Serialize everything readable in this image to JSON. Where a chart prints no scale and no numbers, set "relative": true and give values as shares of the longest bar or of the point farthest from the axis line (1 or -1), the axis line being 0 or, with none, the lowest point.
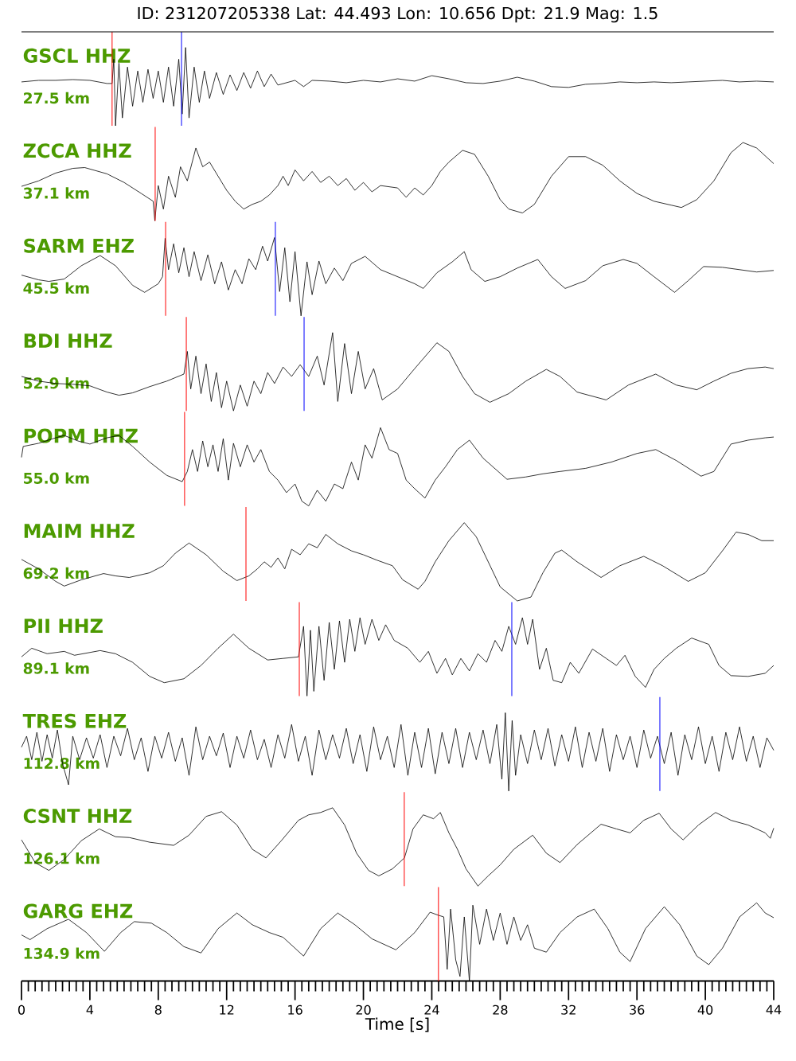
{
  "chart_data": [
    {
      "type": "line",
      "title": "ID: 231207205338 Lat: 44.493 Lon: 10.656 Dpt: 21.9 Mag: 1.5",
      "annotations": [
        "GSCL HHZ",
        "27.5 km"
      ],
      "relative": true,
      "xlim": [
        0,
        44
      ],
      "tick_labels": false,
      "color": "#000000",
      "x": [
        0,
        1,
        2,
        3,
        4,
        5,
        5.3,
        5.4,
        5.5,
        5.7,
        5.9,
        6.2,
        6.5,
        6.8,
        7.1,
        7.4,
        7.7,
        8.0,
        8.3,
        8.6,
        8.9,
        9.2,
        9.4,
        9.6,
        9.8,
        10.1,
        10.4,
        10.7,
        11.0,
        11.4,
        11.8,
        12.2,
        12.6,
        13.0,
        13.4,
        13.8,
        14.2,
        14.6,
        15,
        16,
        16.5,
        17,
        18,
        19,
        20,
        21,
        22,
        23,
        24,
        25,
        26,
        27,
        28,
        29,
        30,
        31,
        32,
        33,
        34,
        35,
        36,
        37,
        38,
        39,
        40,
        41,
        42,
        43,
        44
      ],
      "values": [
        0.56,
        0.58,
        0.58,
        0.59,
        0.58,
        0.54,
        0.54,
        0.85,
        0.0,
        0.8,
        0.1,
        0.75,
        0.25,
        0.7,
        0.3,
        0.72,
        0.35,
        0.7,
        0.3,
        0.75,
        0.25,
        0.85,
        0.15,
        1.0,
        0.1,
        0.75,
        0.3,
        0.7,
        0.35,
        0.68,
        0.4,
        0.65,
        0.45,
        0.68,
        0.48,
        0.7,
        0.5,
        0.66,
        0.52,
        0.58,
        0.5,
        0.58,
        0.57,
        0.55,
        0.58,
        0.56,
        0.6,
        0.57,
        0.64,
        0.6,
        0.55,
        0.54,
        0.57,
        0.62,
        0.57,
        0.5,
        0.49,
        0.53,
        0.54,
        0.56,
        0.55,
        0.56,
        0.55,
        0.56,
        0.57,
        0.58,
        0.56,
        0.57,
        0.56
      ],
      "ref_lines": [
        {
          "axis": "x",
          "value": 5.3,
          "color": "#ff0000"
        },
        {
          "axis": "x",
          "value": 9.36,
          "color": "#0000ff"
        }
      ]
    },
    {
      "type": "line",
      "annotations": [
        "ZCCA HHZ",
        "37.1 km"
      ],
      "relative": true,
      "xlim": [
        0,
        44
      ],
      "tick_labels": false,
      "color": "#000000",
      "x": [
        0,
        1,
        2,
        3,
        3.7,
        5,
        6,
        7,
        7.7,
        7.8,
        8.0,
        8.3,
        8.6,
        9.0,
        9.3,
        9.7,
        10.2,
        10.6,
        11.0,
        11.5,
        12,
        12.5,
        13,
        13.5,
        14,
        14.5,
        15,
        15.3,
        15.6,
        16,
        16.5,
        17,
        17.5,
        18,
        18.5,
        19,
        19.5,
        20,
        20.5,
        21,
        22,
        22.5,
        23,
        23.5,
        24,
        24.5,
        25,
        25.8,
        26.5,
        27.3,
        28,
        28.5,
        29.3,
        30,
        31,
        32,
        33,
        34,
        35,
        36,
        37,
        38,
        38.6,
        39.5,
        40.5,
        41.5,
        42.2,
        43,
        44
      ],
      "values": [
        0.44,
        0.51,
        0.61,
        0.67,
        0.68,
        0.6,
        0.49,
        0.35,
        0.25,
        0.0,
        0.45,
        0.15,
        0.57,
        0.3,
        0.69,
        0.51,
        0.93,
        0.69,
        0.75,
        0.57,
        0.39,
        0.25,
        0.15,
        0.21,
        0.25,
        0.33,
        0.45,
        0.57,
        0.45,
        0.65,
        0.51,
        0.63,
        0.49,
        0.57,
        0.45,
        0.54,
        0.39,
        0.49,
        0.37,
        0.45,
        0.42,
        0.3,
        0.42,
        0.33,
        0.45,
        0.63,
        0.75,
        0.9,
        0.85,
        0.57,
        0.27,
        0.15,
        0.1,
        0.21,
        0.57,
        0.82,
        0.82,
        0.71,
        0.51,
        0.35,
        0.25,
        0.2,
        0.17,
        0.27,
        0.51,
        0.87,
        1.0,
        0.93,
        0.73
      ],
      "ref_lines": [
        {
          "axis": "x",
          "value": 7.82,
          "color": "#ff0000"
        }
      ]
    },
    {
      "type": "line",
      "annotations": [
        "SARM EHZ",
        "45.5 km"
      ],
      "relative": true,
      "xlim": [
        0,
        44
      ],
      "tick_labels": false,
      "color": "#000000",
      "x": [
        0,
        1,
        1.6,
        2.5,
        3.5,
        4.6,
        5.5,
        6.5,
        7.2,
        8.0,
        8.25,
        8.4,
        8.6,
        8.9,
        9.2,
        9.5,
        9.8,
        10.1,
        10.5,
        10.9,
        11.3,
        11.7,
        12.1,
        12.5,
        12.9,
        13.3,
        13.7,
        14.1,
        14.4,
        14.8,
        15.1,
        15.4,
        15.7,
        16.0,
        16.35,
        16.7,
        17.0,
        17.4,
        17.8,
        18.3,
        18.8,
        19.3,
        20.1,
        21,
        22,
        23,
        23.5,
        24.3,
        25.2,
        25.9,
        26.3,
        27.1,
        28,
        29,
        30.2,
        31,
        31.8,
        33,
        34,
        35.2,
        36,
        37,
        38.2,
        39,
        39.9,
        41,
        42,
        43,
        44
      ],
      "values": [
        0.52,
        0.46,
        0.44,
        0.47,
        0.64,
        0.77,
        0.64,
        0.39,
        0.3,
        0.41,
        0.5,
        0.99,
        0.59,
        0.92,
        0.55,
        0.87,
        0.5,
        0.82,
        0.45,
        0.78,
        0.41,
        0.69,
        0.33,
        0.59,
        0.41,
        0.73,
        0.59,
        0.89,
        0.7,
        1.0,
        0.31,
        0.87,
        0.18,
        0.82,
        0.0,
        0.69,
        0.27,
        0.7,
        0.41,
        0.61,
        0.45,
        0.67,
        0.76,
        0.59,
        0.5,
        0.41,
        0.35,
        0.55,
        0.69,
        0.82,
        0.59,
        0.44,
        0.5,
        0.61,
        0.72,
        0.5,
        0.35,
        0.45,
        0.64,
        0.72,
        0.67,
        0.5,
        0.3,
        0.45,
        0.63,
        0.62,
        0.59,
        0.56,
        0.58
      ],
      "ref_lines": [
        {
          "axis": "x",
          "value": 8.43,
          "color": "#ff0000"
        },
        {
          "axis": "x",
          "value": 14.85,
          "color": "#0000ff"
        }
      ]
    },
    {
      "type": "line",
      "annotations": [
        "BDI HHZ",
        "52.9 km"
      ],
      "relative": true,
      "xlim": [
        0,
        44
      ],
      "tick_labels": false,
      "color": "#000000",
      "x": [
        0,
        1,
        2,
        3,
        4,
        5,
        5.7,
        6.5,
        7.5,
        8.5,
        9.5,
        9.7,
        9.9,
        10.2,
        10.5,
        10.8,
        11.1,
        11.4,
        11.7,
        12.0,
        12.4,
        12.8,
        13.2,
        13.6,
        14.0,
        14.4,
        14.8,
        15.3,
        15.8,
        16.3,
        16.8,
        17.3,
        17.7,
        18.2,
        18.5,
        18.9,
        19.3,
        19.7,
        20.1,
        20.6,
        21.1,
        22,
        23,
        24.3,
        25,
        25.8,
        26.5,
        27.4,
        28.5,
        29.5,
        30.7,
        31.5,
        32.5,
        34.2,
        35.5,
        37.1,
        38.3,
        39.5,
        40.5,
        41.5,
        42.5,
        43.5,
        44
      ],
      "values": [
        0.44,
        0.38,
        0.35,
        0.34,
        0.32,
        0.24,
        0.2,
        0.23,
        0.31,
        0.38,
        0.47,
        0.76,
        0.28,
        0.7,
        0.22,
        0.6,
        0.12,
        0.49,
        0.04,
        0.38,
        0.0,
        0.33,
        0.06,
        0.38,
        0.22,
        0.49,
        0.35,
        0.56,
        0.44,
        0.59,
        0.44,
        0.7,
        0.33,
        1.0,
        0.12,
        0.86,
        0.22,
        0.76,
        0.28,
        0.54,
        0.14,
        0.28,
        0.54,
        0.87,
        0.76,
        0.44,
        0.22,
        0.11,
        0.22,
        0.38,
        0.53,
        0.44,
        0.24,
        0.14,
        0.33,
        0.47,
        0.33,
        0.27,
        0.38,
        0.48,
        0.54,
        0.56,
        0.54
      ],
      "ref_lines": [
        {
          "axis": "x",
          "value": 9.64,
          "color": "#ff0000"
        },
        {
          "axis": "x",
          "value": 16.53,
          "color": "#0000ff"
        }
      ]
    },
    {
      "type": "line",
      "annotations": [
        "POPM HHZ",
        "55.0 km"
      ],
      "relative": true,
      "xlim": [
        0,
        44
      ],
      "tick_labels": false,
      "color": "#000000",
      "x": [
        0,
        0.1,
        1,
        2,
        2.5,
        3.3,
        4,
        5,
        5.7,
        6.5,
        7.5,
        8.5,
        9.4,
        9.7,
        10.0,
        10.3,
        10.6,
        10.9,
        11.2,
        11.5,
        11.8,
        12.1,
        12.4,
        12.8,
        13.2,
        13.6,
        14.0,
        14.5,
        15,
        15.5,
        16,
        16.4,
        16.8,
        17.3,
        17.8,
        18.3,
        18.8,
        19.3,
        19.7,
        20.1,
        20.5,
        21,
        21.5,
        22,
        22.5,
        23,
        23.6,
        24.2,
        24.8,
        25.5,
        26.2,
        27,
        28.4,
        29.5,
        30.5,
        31.5,
        33,
        34.5,
        36,
        37.1,
        38.3,
        39.75,
        40.5,
        41.5,
        42.5,
        43.5,
        44
      ],
      "values": [
        0.62,
        0.76,
        0.8,
        0.87,
        0.9,
        0.83,
        0.79,
        0.87,
        0.9,
        0.76,
        0.56,
        0.39,
        0.31,
        0.44,
        0.72,
        0.44,
        0.83,
        0.5,
        0.78,
        0.44,
        0.86,
        0.33,
        0.8,
        0.5,
        0.78,
        0.56,
        0.72,
        0.44,
        0.33,
        0.17,
        0.28,
        0.06,
        0.0,
        0.2,
        0.06,
        0.28,
        0.22,
        0.56,
        0.33,
        0.78,
        0.61,
        1.0,
        0.72,
        0.67,
        0.33,
        0.22,
        0.1,
        0.33,
        0.5,
        0.72,
        0.84,
        0.61,
        0.34,
        0.37,
        0.41,
        0.44,
        0.48,
        0.56,
        0.67,
        0.72,
        0.58,
        0.38,
        0.44,
        0.79,
        0.84,
        0.87,
        0.88
      ],
      "ref_lines": [
        {
          "axis": "x",
          "value": 9.54,
          "color": "#ff0000"
        }
      ]
    },
    {
      "type": "line",
      "annotations": [
        "MAIM HHZ",
        "69.2 km"
      ],
      "relative": true,
      "xlim": [
        0,
        44
      ],
      "tick_labels": false,
      "color": "#000000",
      "x": [
        0,
        1,
        2,
        2.5,
        3.5,
        4.8,
        5.5,
        6.3,
        7.5,
        8.3,
        9,
        9.8,
        10.8,
        11.8,
        12.6,
        13.3,
        13.8,
        14.2,
        14.6,
        15,
        15.4,
        15.8,
        16.3,
        16.8,
        17.3,
        17.8,
        18.5,
        19.3,
        20,
        20.8,
        21.7,
        22.3,
        23.2,
        23.6,
        24.2,
        25.0,
        25.9,
        26.6,
        27.3,
        28,
        29,
        29.8,
        30.5,
        31.2,
        31.6,
        32.5,
        33.9,
        35,
        36.4,
        37.5,
        39,
        40,
        41,
        41.8,
        42.5,
        43.3,
        44
      ],
      "values": [
        0.53,
        0.41,
        0.25,
        0.19,
        0.27,
        0.35,
        0.32,
        0.3,
        0.36,
        0.45,
        0.61,
        0.74,
        0.59,
        0.38,
        0.26,
        0.32,
        0.41,
        0.5,
        0.43,
        0.55,
        0.41,
        0.66,
        0.59,
        0.73,
        0.68,
        0.85,
        0.73,
        0.64,
        0.59,
        0.52,
        0.45,
        0.27,
        0.15,
        0.25,
        0.5,
        0.77,
        1.0,
        0.82,
        0.5,
        0.18,
        0.0,
        0.05,
        0.36,
        0.61,
        0.65,
        0.5,
        0.3,
        0.45,
        0.57,
        0.45,
        0.25,
        0.36,
        0.64,
        0.88,
        0.85,
        0.77,
        0.77
      ],
      "ref_lines": [
        {
          "axis": "x",
          "value": 13.13,
          "color": "#ff0000"
        }
      ]
    },
    {
      "type": "line",
      "annotations": [
        "PII HHZ",
        "89.1 km"
      ],
      "relative": true,
      "xlim": [
        0,
        44
      ],
      "tick_labels": false,
      "color": "#000000",
      "x": [
        0,
        0.6,
        1.5,
        2.5,
        3.1,
        4.6,
        5.5,
        6.5,
        7.5,
        8.35,
        9.5,
        10.5,
        11.5,
        12.4,
        13.3,
        14.4,
        15.3,
        16.2,
        16.5,
        16.7,
        16.9,
        17.1,
        17.4,
        17.7,
        18.0,
        18.3,
        18.6,
        18.9,
        19.2,
        19.5,
        19.8,
        20.1,
        20.5,
        20.9,
        21.3,
        21.8,
        22.6,
        23.3,
        23.8,
        24.3,
        24.8,
        25.2,
        25.7,
        26.2,
        26.7,
        27.2,
        27.7,
        28.1,
        28.5,
        28.9,
        29.3,
        29.6,
        29.9,
        30.3,
        30.7,
        31.1,
        31.6,
        32.1,
        32.6,
        33.4,
        34.2,
        34.8,
        35.3,
        35.9,
        36.5,
        37.0,
        37.6,
        38.3,
        39.2,
        40.2,
        40.8,
        41.5,
        42.5,
        43.5,
        44
      ],
      "values": [
        0.5,
        0.61,
        0.54,
        0.57,
        0.52,
        0.58,
        0.54,
        0.43,
        0.25,
        0.17,
        0.22,
        0.39,
        0.61,
        0.79,
        0.61,
        0.46,
        0.48,
        0.5,
        0.89,
        0.0,
        0.84,
        0.06,
        0.89,
        0.2,
        0.94,
        0.34,
        0.96,
        0.43,
        0.98,
        0.57,
        1.0,
        0.66,
        0.98,
        0.71,
        0.91,
        0.71,
        0.61,
        0.43,
        0.57,
        0.29,
        0.48,
        0.27,
        0.48,
        0.32,
        0.54,
        0.43,
        0.71,
        0.57,
        0.89,
        0.66,
        1.0,
        0.66,
        0.98,
        0.34,
        0.61,
        0.2,
        0.17,
        0.43,
        0.29,
        0.6,
        0.48,
        0.39,
        0.52,
        0.25,
        0.11,
        0.34,
        0.48,
        0.61,
        0.74,
        0.66,
        0.39,
        0.26,
        0.25,
        0.29,
        0.39
      ],
      "ref_lines": [
        {
          "axis": "x",
          "value": 16.25,
          "color": "#ff0000"
        },
        {
          "axis": "x",
          "value": 28.68,
          "color": "#0000ff"
        }
      ]
    },
    {
      "type": "line",
      "annotations": [
        "TRES EHZ",
        "112.8 km"
      ],
      "relative": true,
      "xlim": [
        0,
        44
      ],
      "tick_labels": false,
      "color": "#000000",
      "x": [
        0,
        0.3,
        0.6,
        0.9,
        1.2,
        1.5,
        1.8,
        2.1,
        2.4,
        2.75,
        3.0,
        3.4,
        3.8,
        4.2,
        4.6,
        5.0,
        5.4,
        5.8,
        6.2,
        6.6,
        7.0,
        7.4,
        7.8,
        8.2,
        8.6,
        9.0,
        9.4,
        9.8,
        10.2,
        10.6,
        11.0,
        11.4,
        11.8,
        12.2,
        12.6,
        13.0,
        13.4,
        13.8,
        14.2,
        14.6,
        15.0,
        15.4,
        15.8,
        16.2,
        16.6,
        17.0,
        17.4,
        17.8,
        18.2,
        18.6,
        19.0,
        19.4,
        19.8,
        20.2,
        20.6,
        21.0,
        21.4,
        21.8,
        22.2,
        22.6,
        23.0,
        23.4,
        23.8,
        24.2,
        24.6,
        25.0,
        25.4,
        25.8,
        26.2,
        26.6,
        27.0,
        27.4,
        27.8,
        28.1,
        28.3,
        28.5,
        28.7,
        28.9,
        29.2,
        29.6,
        30.0,
        30.4,
        30.8,
        31.2,
        31.6,
        32.0,
        32.4,
        32.8,
        33.2,
        33.6,
        34.0,
        34.4,
        34.8,
        35.2,
        35.6,
        36.0,
        36.4,
        36.8,
        37.2,
        37.6,
        38.0,
        38.4,
        38.8,
        39.2,
        39.6,
        40.0,
        40.4,
        40.8,
        41.2,
        41.6,
        42.0,
        42.4,
        42.8,
        43.2,
        43.6,
        44
      ],
      "values": [
        0.56,
        0.7,
        0.4,
        0.75,
        0.38,
        0.72,
        0.42,
        0.78,
        0.35,
        0.08,
        0.7,
        0.4,
        0.68,
        0.42,
        0.72,
        0.3,
        0.7,
        0.45,
        0.8,
        0.4,
        0.68,
        0.25,
        0.7,
        0.42,
        0.75,
        0.38,
        0.68,
        0.2,
        0.82,
        0.4,
        0.7,
        0.45,
        0.74,
        0.3,
        0.7,
        0.42,
        0.78,
        0.4,
        0.66,
        0.3,
        0.72,
        0.42,
        0.85,
        0.38,
        0.7,
        0.2,
        0.78,
        0.4,
        0.72,
        0.42,
        0.8,
        0.35,
        0.72,
        0.25,
        0.82,
        0.4,
        0.7,
        0.3,
        0.85,
        0.2,
        0.75,
        0.3,
        0.8,
        0.22,
        0.75,
        0.35,
        0.8,
        0.3,
        0.75,
        0.4,
        0.78,
        0.35,
        0.85,
        0.15,
        1.0,
        0.0,
        0.9,
        0.2,
        0.72,
        0.35,
        0.78,
        0.4,
        0.8,
        0.32,
        0.72,
        0.38,
        0.82,
        0.3,
        0.75,
        0.38,
        0.8,
        0.25,
        0.72,
        0.4,
        0.7,
        0.3,
        0.78,
        0.42,
        0.7,
        0.35,
        0.75,
        0.2,
        0.72,
        0.4,
        0.82,
        0.35,
        0.7,
        0.25,
        0.75,
        0.4,
        0.82,
        0.38,
        0.7,
        0.3,
        0.68,
        0.52
      ],
      "ref_lines": [
        {
          "axis": "x",
          "value": 37.34,
          "color": "#0000ff"
        }
      ]
    },
    {
      "type": "line",
      "annotations": [
        "CSNT HHZ",
        "126.1 km"
      ],
      "relative": true,
      "xlim": [
        0,
        44
      ],
      "tick_labels": false,
      "color": "#000000",
      "x": [
        0,
        0.8,
        1.6,
        2.5,
        3.5,
        4.55,
        5.5,
        6.3,
        7.5,
        8.9,
        9.8,
        10.8,
        11.7,
        12.6,
        13.5,
        14.3,
        15.2,
        16.2,
        16.8,
        17.5,
        18.2,
        18.9,
        19.6,
        20.3,
        20.9,
        21.7,
        22.4,
        22.9,
        23.5,
        24.1,
        24.5,
        25.0,
        25.5,
        26.0,
        26.7,
        27.3,
        28.0,
        28.8,
        29.9,
        30.7,
        31.5,
        32.5,
        33.9,
        34.8,
        35.6,
        36.4,
        37.3,
        38.0,
        38.7,
        39.6,
        40.6,
        41.5,
        42.5,
        43.5,
        43.8,
        44
      ],
      "values": [
        0.59,
        0.3,
        0.2,
        0.34,
        0.58,
        0.73,
        0.63,
        0.62,
        0.56,
        0.52,
        0.65,
        0.89,
        0.95,
        0.78,
        0.47,
        0.36,
        0.58,
        0.84,
        0.91,
        0.94,
        1.0,
        0.78,
        0.42,
        0.2,
        0.13,
        0.22,
        0.36,
        0.73,
        0.91,
        0.86,
        0.94,
        0.68,
        0.47,
        0.22,
        0.0,
        0.13,
        0.27,
        0.47,
        0.65,
        0.42,
        0.3,
        0.53,
        0.79,
        0.73,
        0.68,
        0.84,
        0.93,
        0.73,
        0.59,
        0.78,
        0.94,
        0.84,
        0.78,
        0.68,
        0.61,
        0.74
      ],
      "ref_lines": [
        {
          "axis": "x",
          "value": 22.39,
          "color": "#ff0000"
        }
      ]
    },
    {
      "type": "line",
      "annotations": [
        "GARG EHZ",
        "134.9 km"
      ],
      "relative": true,
      "xlim": [
        0,
        44
      ],
      "tick_labels": "x",
      "xlabel": "Time [s]",
      "color": "#000000",
      "x": [
        0,
        0.5,
        1.5,
        2.75,
        3.8,
        4.85,
        5.8,
        6.6,
        7.6,
        8.5,
        9.5,
        10.5,
        11.5,
        12.6,
        13.5,
        14.5,
        15.3,
        16.5,
        17.5,
        18.5,
        19.5,
        20.5,
        21.9,
        23.0,
        23.9,
        24.4,
        24.7,
        24.9,
        25.1,
        25.4,
        25.65,
        25.9,
        26.2,
        26.4,
        26.8,
        27.2,
        27.6,
        28.0,
        28.4,
        28.8,
        29.2,
        29.6,
        30.0,
        30.7,
        31.5,
        32.5,
        33.5,
        34.3,
        35.0,
        35.6,
        36.5,
        37.6,
        38.5,
        39.5,
        40.2,
        41.0,
        42.0,
        43.0,
        43.5,
        44
      ],
      "values": [
        0.59,
        0.53,
        0.67,
        0.79,
        0.62,
        0.38,
        0.62,
        0.76,
        0.74,
        0.62,
        0.44,
        0.36,
        0.67,
        0.87,
        0.72,
        0.62,
        0.56,
        0.32,
        0.67,
        0.87,
        0.72,
        0.54,
        0.4,
        0.62,
        0.88,
        0.84,
        0.82,
        0.15,
        0.92,
        0.27,
        0.06,
        0.82,
        0.0,
        0.97,
        0.47,
        0.92,
        0.52,
        0.87,
        0.47,
        0.82,
        0.52,
        0.72,
        0.42,
        0.37,
        0.62,
        0.82,
        0.92,
        0.67,
        0.37,
        0.25,
        0.67,
        0.95,
        0.72,
        0.32,
        0.21,
        0.42,
        0.82,
        1.0,
        0.87,
        0.81
      ],
      "ref_lines": [
        {
          "axis": "x",
          "value": 24.39,
          "color": "#ff0000"
        }
      ],
      "xticks": [
        0,
        {
          "value": 0.4,
          "label": null
        },
        {
          "value": 0.8,
          "label": null
        },
        {
          "value": 1.2,
          "label": null
        },
        {
          "value": 1.6,
          "label": null
        },
        {
          "value": 2,
          "label": null
        },
        {
          "value": 2.4,
          "label": null
        },
        {
          "value": 2.8,
          "label": null
        },
        {
          "value": 3.2,
          "label": null
        },
        {
          "value": 3.6,
          "label": null
        },
        4,
        {
          "value": 4.4,
          "label": null
        },
        {
          "value": 4.8,
          "label": null
        },
        {
          "value": 5.2,
          "label": null
        },
        {
          "value": 5.6,
          "label": null
        },
        {
          "value": 6,
          "label": null
        },
        {
          "value": 6.4,
          "label": null
        },
        {
          "value": 6.8,
          "label": null
        },
        {
          "value": 7.2,
          "label": null
        },
        {
          "value": 7.6,
          "label": null
        },
        8,
        {
          "value": 8.4,
          "label": null
        },
        {
          "value": 8.8,
          "label": null
        },
        {
          "value": 9.2,
          "label": null
        },
        {
          "value": 9.6,
          "label": null
        },
        {
          "value": 10,
          "label": null
        },
        {
          "value": 10.4,
          "label": null
        },
        {
          "value": 10.8,
          "label": null
        },
        {
          "value": 11.2,
          "label": null
        },
        {
          "value": 11.6,
          "label": null
        },
        12,
        {
          "value": 12.4,
          "label": null
        },
        {
          "value": 12.8,
          "label": null
        },
        {
          "value": 13.2,
          "label": null
        },
        {
          "value": 13.6,
          "label": null
        },
        {
          "value": 14,
          "label": null
        },
        {
          "value": 14.4,
          "label": null
        },
        {
          "value": 14.8,
          "label": null
        },
        {
          "value": 15.2,
          "label": null
        },
        {
          "value": 15.6,
          "label": null
        },
        16,
        {
          "value": 16.4,
          "label": null
        },
        {
          "value": 16.8,
          "label": null
        },
        {
          "value": 17.2,
          "label": null
        },
        {
          "value": 17.6,
          "label": null
        },
        {
          "value": 18,
          "label": null
        },
        {
          "value": 18.4,
          "label": null
        },
        {
          "value": 18.8,
          "label": null
        },
        {
          "value": 19.2,
          "label": null
        },
        {
          "value": 19.6,
          "label": null
        },
        20,
        {
          "value": 20.4,
          "label": null
        },
        {
          "value": 20.8,
          "label": null
        },
        {
          "value": 21.2,
          "label": null
        },
        {
          "value": 21.6,
          "label": null
        },
        {
          "value": 22,
          "label": null
        },
        {
          "value": 22.4,
          "label": null
        },
        {
          "value": 22.8,
          "label": null
        },
        {
          "value": 23.2,
          "label": null
        },
        {
          "value": 23.6,
          "label": null
        },
        24,
        {
          "value": 24.4,
          "label": null
        },
        {
          "value": 24.8,
          "label": null
        },
        {
          "value": 25.2,
          "label": null
        },
        {
          "value": 25.6,
          "label": null
        },
        {
          "value": 26,
          "label": null
        },
        {
          "value": 26.4,
          "label": null
        },
        {
          "value": 26.8,
          "label": null
        },
        {
          "value": 27.2,
          "label": null
        },
        {
          "value": 27.6,
          "label": null
        },
        28,
        {
          "value": 28.4,
          "label": null
        },
        {
          "value": 28.8,
          "label": null
        },
        {
          "value": 29.2,
          "label": null
        },
        {
          "value": 29.6,
          "label": null
        },
        {
          "value": 30,
          "label": null
        },
        {
          "value": 30.4,
          "label": null
        },
        {
          "value": 30.8,
          "label": null
        },
        {
          "value": 31.2,
          "label": null
        },
        {
          "value": 31.6,
          "label": null
        },
        32,
        {
          "value": 32.4,
          "label": null
        },
        {
          "value": 32.8,
          "label": null
        },
        {
          "value": 33.2,
          "label": null
        },
        {
          "value": 33.6,
          "label": null
        },
        {
          "value": 34,
          "label": null
        },
        {
          "value": 34.4,
          "label": null
        },
        {
          "value": 34.8,
          "label": null
        },
        {
          "value": 35.2,
          "label": null
        },
        {
          "value": 35.6,
          "label": null
        },
        36,
        {
          "value": 36.4,
          "label": null
        },
        {
          "value": 36.8,
          "label": null
        },
        {
          "value": 37.2,
          "label": null
        },
        {
          "value": 37.6,
          "label": null
        },
        {
          "value": 38,
          "label": null
        },
        {
          "value": 38.4,
          "label": null
        },
        {
          "value": 38.8,
          "label": null
        },
        {
          "value": 39.2,
          "label": null
        },
        {
          "value": 39.6,
          "label": null
        },
        40,
        {
          "value": 40.4,
          "label": null
        },
        {
          "value": 40.8,
          "label": null
        },
        {
          "value": 41.2,
          "label": null
        },
        {
          "value": 41.6,
          "label": null
        },
        {
          "value": 42,
          "label": null
        },
        {
          "value": 42.4,
          "label": null
        },
        {
          "value": 42.8,
          "label": null
        },
        {
          "value": 43.2,
          "label": null
        },
        {
          "value": 43.6,
          "label": null
        },
        44
      ]
    }
  ]
}
